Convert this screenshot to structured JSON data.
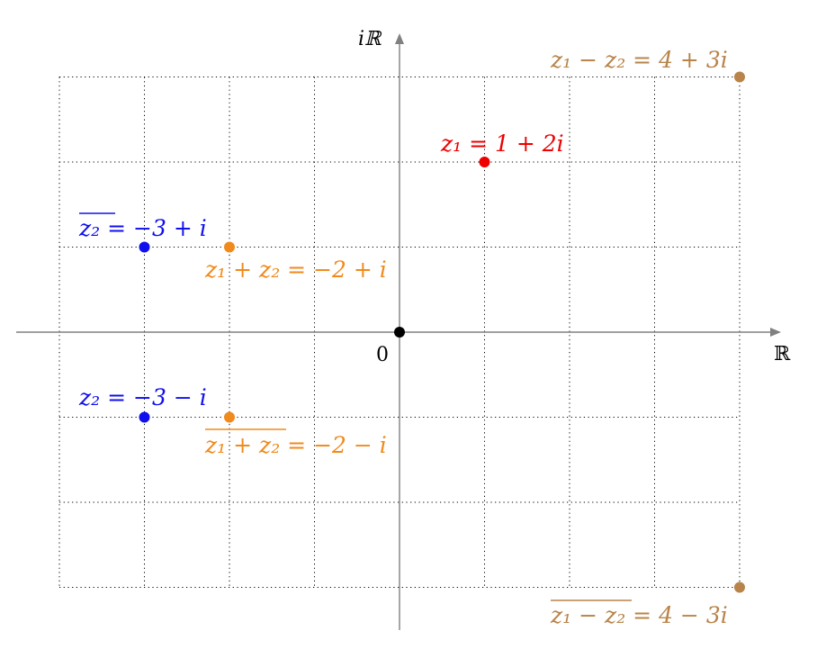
{
  "axes": {
    "real_label": "ℝ",
    "imag_label": "iℝ",
    "origin_label": "0",
    "x_range": [
      -4,
      4
    ],
    "y_range": [
      -3,
      3
    ],
    "grid": true
  },
  "colors": {
    "z1": "#ee0000",
    "conj_z2": "#1010ee",
    "z2": "#1010ee",
    "sum": "#f08a1c",
    "conj_sum": "#f08a1c",
    "diff": "#b8844a",
    "conj_diff": "#b8844a",
    "origin": "#000000",
    "axis": "#808080",
    "grid": "#000000"
  },
  "points": [
    {
      "id": "z1",
      "x": 1,
      "y": 2,
      "label": "z₁ = 1 + 2i",
      "overline": false
    },
    {
      "id": "conj_z2",
      "x": -3,
      "y": 1,
      "label": "z₂ = −3 + i",
      "overline": true,
      "overline_text": "z₂"
    },
    {
      "id": "z2",
      "x": -3,
      "y": -1,
      "label": "z₂ = −3 − i",
      "overline": false
    },
    {
      "id": "sum",
      "x": -2,
      "y": 1,
      "label": "z₁ + z₂ = −2 + i",
      "overline": false
    },
    {
      "id": "conj_sum",
      "x": -2,
      "y": -1,
      "label": "z₁ + z₂ = −2 − i",
      "overline": true,
      "overline_text": "z₁ + z₂"
    },
    {
      "id": "diff",
      "x": 4,
      "y": 3,
      "label": "z₁ − z₂ = 4 + 3i",
      "overline": false
    },
    {
      "id": "conj_diff",
      "x": 4,
      "y": -3,
      "label": "z₁ − z₂ = 4 − 3i",
      "overline": true,
      "overline_text": "z₁ − z₂"
    },
    {
      "id": "origin",
      "x": 0,
      "y": 0,
      "label": "",
      "overline": false
    }
  ]
}
